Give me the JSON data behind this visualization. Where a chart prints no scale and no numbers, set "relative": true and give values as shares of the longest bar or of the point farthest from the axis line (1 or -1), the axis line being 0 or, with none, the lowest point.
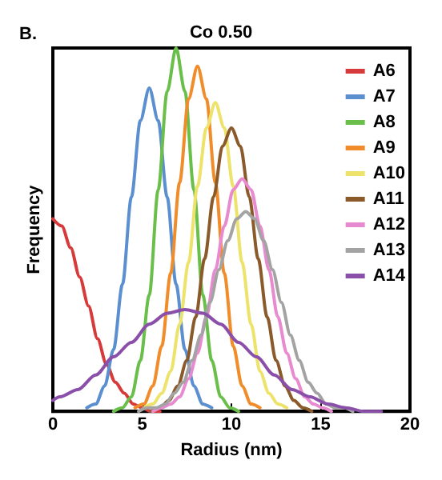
{
  "chart_data": {
    "type": "line",
    "title": "Co 0.50",
    "xlabel": "Radius (nm)",
    "ylabel": "Frequency",
    "annotations": [
      "B."
    ],
    "relative": true,
    "xlim": [
      0,
      20
    ],
    "xticks": [
      0,
      5,
      10,
      15,
      20
    ],
    "grid": false,
    "legend": "top right",
    "marker": "none",
    "line_style": "solid",
    "series": [
      {
        "name": "A6",
        "color": "#d63a3a",
        "x": [
          0,
          0.5,
          1,
          1.5,
          2,
          2.5,
          3,
          3.5,
          4,
          4.5,
          5,
          5.5,
          6
        ],
        "values": [
          0.53,
          0.51,
          0.45,
          0.37,
          0.29,
          0.2,
          0.13,
          0.08,
          0.05,
          0.02,
          0.01,
          0.0,
          0.0
        ]
      },
      {
        "name": "A7",
        "color": "#5b8fd0",
        "x": [
          1.9,
          2.4,
          2.9,
          3.4,
          3.9,
          4.4,
          4.9,
          5.4,
          5.9,
          6.4,
          6.9,
          7.4,
          7.9,
          8.4,
          8.9
        ],
        "values": [
          0.01,
          0.02,
          0.07,
          0.17,
          0.35,
          0.59,
          0.8,
          0.89,
          0.8,
          0.59,
          0.35,
          0.17,
          0.07,
          0.02,
          0.01
        ]
      },
      {
        "name": "A8",
        "color": "#6abf4b",
        "x": [
          3.4,
          3.9,
          4.4,
          4.9,
          5.4,
          5.9,
          6.4,
          6.9,
          7.4,
          7.9,
          8.4,
          8.9,
          9.4,
          9.9,
          10.4
        ],
        "values": [
          0,
          0.01,
          0.04,
          0.14,
          0.32,
          0.61,
          0.88,
          1,
          0.88,
          0.61,
          0.32,
          0.14,
          0.04,
          0.01,
          0
        ]
      },
      {
        "name": "A9",
        "color": "#f08c2a",
        "x": [
          4.6,
          5.1,
          5.6,
          6.1,
          6.6,
          7.1,
          7.6,
          8.1,
          8.6,
          9.1,
          9.6,
          10.1,
          10.6,
          11.1,
          11.6
        ],
        "values": [
          0.01,
          0.02,
          0.07,
          0.18,
          0.38,
          0.63,
          0.86,
          0.95,
          0.86,
          0.63,
          0.38,
          0.18,
          0.07,
          0.02,
          0.01
        ]
      },
      {
        "name": "A10",
        "color": "#ede36a",
        "x": [
          5.1,
          5.6,
          6.1,
          6.6,
          7.1,
          7.6,
          8.1,
          8.6,
          9.1,
          9.6,
          10.1,
          10.6,
          11.1,
          11.6,
          12.1,
          12.6,
          13.1
        ],
        "values": [
          0.01,
          0.02,
          0.05,
          0.11,
          0.24,
          0.41,
          0.62,
          0.78,
          0.85,
          0.78,
          0.62,
          0.41,
          0.24,
          0.11,
          0.05,
          0.02,
          0.01
        ]
      },
      {
        "name": "A11",
        "color": "#8b5a2b",
        "x": [
          5.5,
          6,
          6.5,
          7,
          7.5,
          8,
          8.5,
          9,
          9.5,
          10,
          10.5,
          11,
          11.5,
          12,
          12.5,
          13,
          13.5,
          14,
          14.5
        ],
        "values": [
          0.0,
          0.01,
          0.03,
          0.07,
          0.14,
          0.26,
          0.42,
          0.59,
          0.73,
          0.78,
          0.73,
          0.59,
          0.42,
          0.26,
          0.14,
          0.07,
          0.03,
          0.01,
          0.0
        ]
      },
      {
        "name": "A12",
        "color": "#e88ad0",
        "x": [
          5.6,
          6.1,
          6.6,
          7.1,
          7.6,
          8.1,
          8.6,
          9.1,
          9.6,
          10.1,
          10.6,
          11.1,
          11.6,
          12.1,
          12.6,
          13.1,
          13.6,
          14.1,
          14.6,
          15.1,
          15.6
        ],
        "values": [
          0.0,
          0.01,
          0.02,
          0.04,
          0.09,
          0.16,
          0.26,
          0.39,
          0.51,
          0.61,
          0.64,
          0.61,
          0.51,
          0.39,
          0.26,
          0.16,
          0.09,
          0.04,
          0.02,
          0.01,
          0.0
        ]
      },
      {
        "name": "A13",
        "color": "#a3a3a3",
        "x": [
          4.8,
          5.3,
          5.8,
          6.3,
          6.8,
          7.3,
          7.8,
          8.3,
          8.8,
          9.3,
          9.8,
          10.3,
          10.8,
          11.3,
          11.8,
          12.3,
          12.8,
          13.3,
          13.8,
          14.3,
          14.8,
          15.3,
          15.8,
          16.3,
          16.8
        ],
        "values": [
          0.0,
          0.01,
          0.01,
          0.02,
          0.05,
          0.08,
          0.14,
          0.21,
          0.3,
          0.39,
          0.47,
          0.53,
          0.55,
          0.53,
          0.47,
          0.39,
          0.3,
          0.21,
          0.14,
          0.08,
          0.05,
          0.02,
          0.01,
          0.01,
          0.0
        ]
      },
      {
        "name": "A14",
        "color": "#8a4fa8",
        "x": [
          0,
          0.4,
          1.4,
          2.4,
          3.4,
          4.4,
          5.4,
          6.4,
          7.4,
          8.4,
          9.4,
          10.4,
          11.4,
          12.4,
          13.4,
          14.4,
          15.4,
          16.4,
          17.4,
          18.4
        ],
        "values": [
          0.03,
          0.04,
          0.06,
          0.1,
          0.15,
          0.19,
          0.24,
          0.27,
          0.28,
          0.27,
          0.24,
          0.19,
          0.15,
          0.1,
          0.06,
          0.04,
          0.02,
          0.01,
          0.0,
          0.0
        ]
      }
    ]
  }
}
